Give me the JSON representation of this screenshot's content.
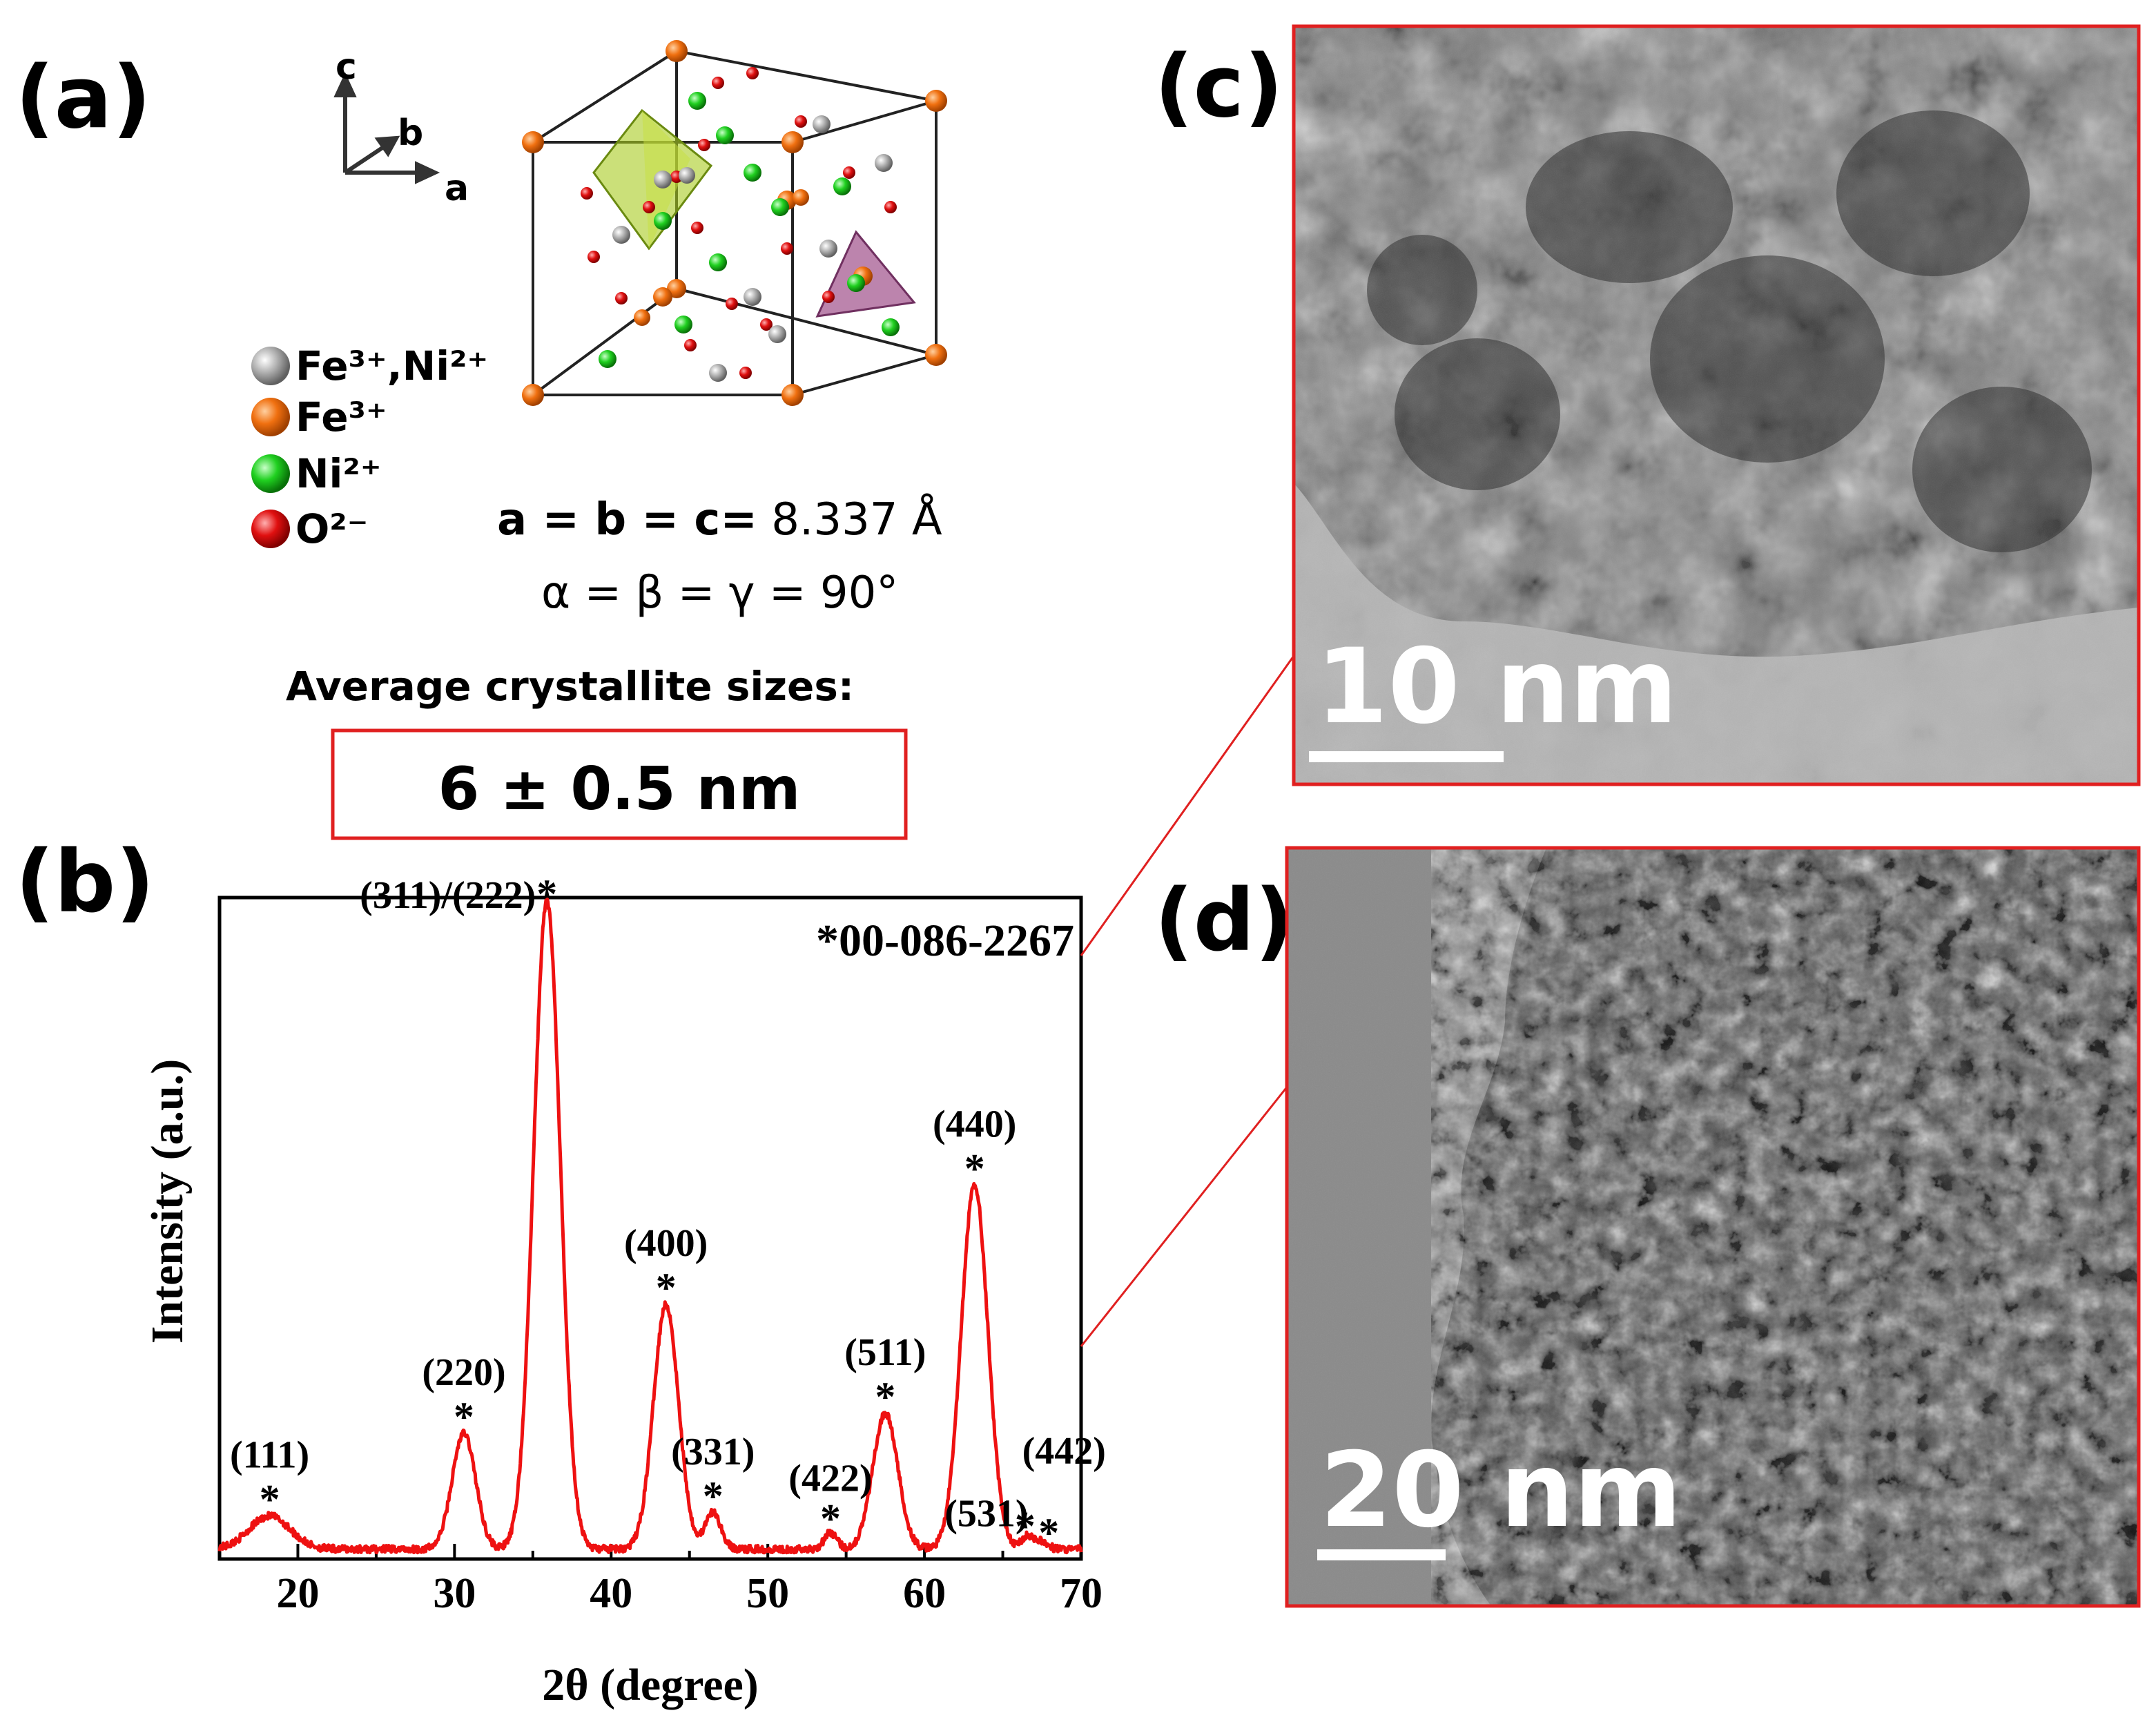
{
  "panels": {
    "a": "(a)",
    "b": "(b)",
    "c": "(c)",
    "d": "(d)"
  },
  "crystal": {
    "axes": {
      "c": "c",
      "b": "b",
      "a": "a"
    },
    "legend": [
      {
        "label": "Fe³⁺,Ni²⁺",
        "color": "#a8a8a8"
      },
      {
        "label": "Fe³⁺",
        "color": "#ef6e12"
      },
      {
        "label": "Ni²⁺",
        "color": "#22cc22"
      },
      {
        "label": "O²⁻",
        "color": "#e01010"
      }
    ],
    "lattice_prefix": "a = b = c=",
    "lattice_value": " 8.337 Å",
    "angles": "α = β = γ = 90°",
    "crystallite_title": "Average crystallite sizes:",
    "crystallite_value": "6 ± 0.5 nm"
  },
  "chart_data": {
    "type": "line",
    "xlabel": "2θ (degree)",
    "ylabel": "Intensity (a.u.)",
    "xlim": [
      15,
      70
    ],
    "ylim": [
      0,
      100
    ],
    "xticks": [
      20,
      30,
      40,
      50,
      60,
      70
    ],
    "reference": "*00-086-2267",
    "series_color": "#ee1111",
    "baseline": 1.5,
    "peaks": [
      {
        "x": 18.2,
        "height": 5.0,
        "width": 1.3,
        "label": "(111)"
      },
      {
        "x": 30.6,
        "height": 17.5,
        "width": 0.75,
        "label": "(220)"
      },
      {
        "x": 35.9,
        "height": 98.0,
        "width": 0.85,
        "label": "(311)/(222)"
      },
      {
        "x": 43.5,
        "height": 37.0,
        "width": 0.8,
        "label": "(400)"
      },
      {
        "x": 46.5,
        "height": 5.5,
        "width": 0.5,
        "label": "(331)"
      },
      {
        "x": 54.0,
        "height": 2.5,
        "width": 0.4,
        "label": "(422)"
      },
      {
        "x": 57.5,
        "height": 20.5,
        "width": 0.8,
        "label": "(511)"
      },
      {
        "x": 63.2,
        "height": 55.0,
        "width": 0.85,
        "label": "(440)"
      },
      {
        "x": 66.6,
        "height": 2.0,
        "width": 0.4,
        "label": "(531)"
      },
      {
        "x": 67.5,
        "height": 1.0,
        "width": 0.4,
        "label": "(442)"
      }
    ]
  },
  "tem": {
    "c_scale": "10 nm",
    "d_scale": "20 nm"
  }
}
